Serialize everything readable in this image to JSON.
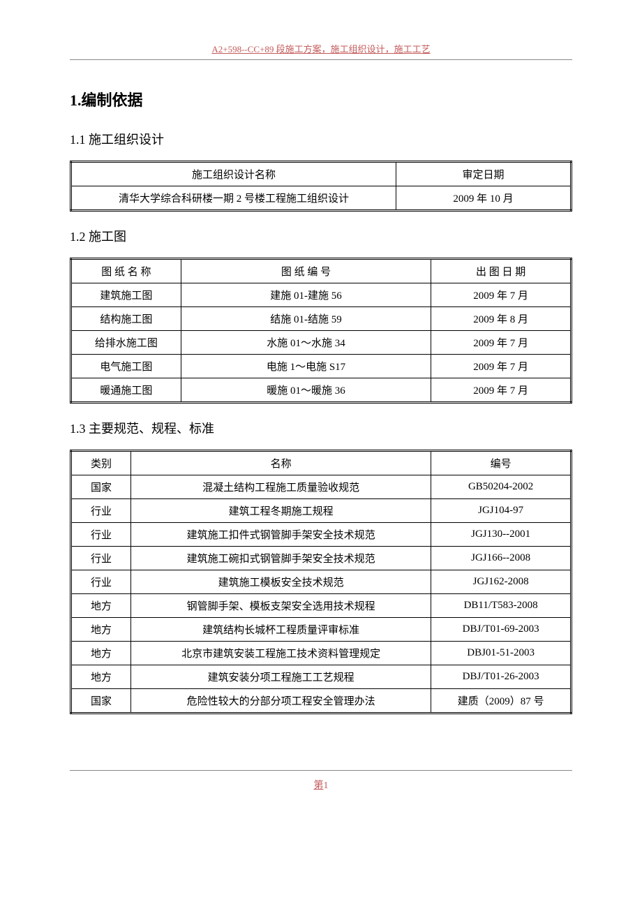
{
  "header": {
    "text": "A2+598--CC+89 段施工方案，施工组织设计，施工工艺"
  },
  "section1": {
    "title": "1.编制依据"
  },
  "section1_1": {
    "title": "1.1 施工组织设计",
    "table": {
      "headers": [
        "施工组织设计名称",
        "审定日期"
      ],
      "rows": [
        [
          "清华大学综合科研楼一期 2 号楼工程施工组织设计",
          "2009 年 10 月"
        ]
      ],
      "col_widths": [
        "65%",
        "35%"
      ]
    }
  },
  "section1_2": {
    "title": "1.2 施工图",
    "table": {
      "headers": [
        "图 纸 名 称",
        "图 纸 编 号",
        "出 图 日 期"
      ],
      "rows": [
        [
          "建筑施工图",
          "建施 01-建施 56",
          "2009 年 7 月"
        ],
        [
          "结构施工图",
          "结施 01-结施 59",
          "2009 年 8 月"
        ],
        [
          "给排水施工图",
          "水施 01～水施 34",
          "2009 年 7 月"
        ],
        [
          "电气施工图",
          "电施 1～电施 S17",
          "2009 年 7 月"
        ],
        [
          "暖通施工图",
          "暖施 01～暖施 36",
          "2009 年 7 月"
        ]
      ],
      "col_widths": [
        "22%",
        "50%",
        "28%"
      ]
    }
  },
  "section1_3": {
    "title": "1.3 主要规范、规程、标准",
    "table": {
      "headers": [
        "类别",
        "名称",
        "编号"
      ],
      "rows": [
        [
          "国家",
          "混凝土结构工程施工质量验收规范",
          "GB50204-2002"
        ],
        [
          "行业",
          "建筑工程冬期施工规程",
          "JGJ104-97"
        ],
        [
          "行业",
          "建筑施工扣件式钢管脚手架安全技术规范",
          "JGJ130--2001"
        ],
        [
          "行业",
          "建筑施工碗扣式钢管脚手架安全技术规范",
          "JGJ166--2008"
        ],
        [
          "行业",
          "建筑施工模板安全技术规范",
          "JGJ162-2008"
        ],
        [
          "地方",
          "钢管脚手架、模板支架安全选用技术规程",
          "DB11/T583-2008"
        ],
        [
          "地方",
          "建筑结构长城杯工程质量评审标准",
          "DBJ/T01-69-2003"
        ],
        [
          "地方",
          "北京市建筑安装工程施工技术资料管理规定",
          "DBJ01-51-2003"
        ],
        [
          "地方",
          "建筑安装分项工程施工工艺规程",
          "DBJ/T01-26-2003"
        ],
        [
          "国家",
          "危险性较大的分部分项工程安全管理办法",
          "建质（2009）87 号"
        ]
      ],
      "col_widths": [
        "12%",
        "60%",
        "28%"
      ]
    }
  },
  "footer": {
    "prefix": "第",
    "page": "1"
  }
}
